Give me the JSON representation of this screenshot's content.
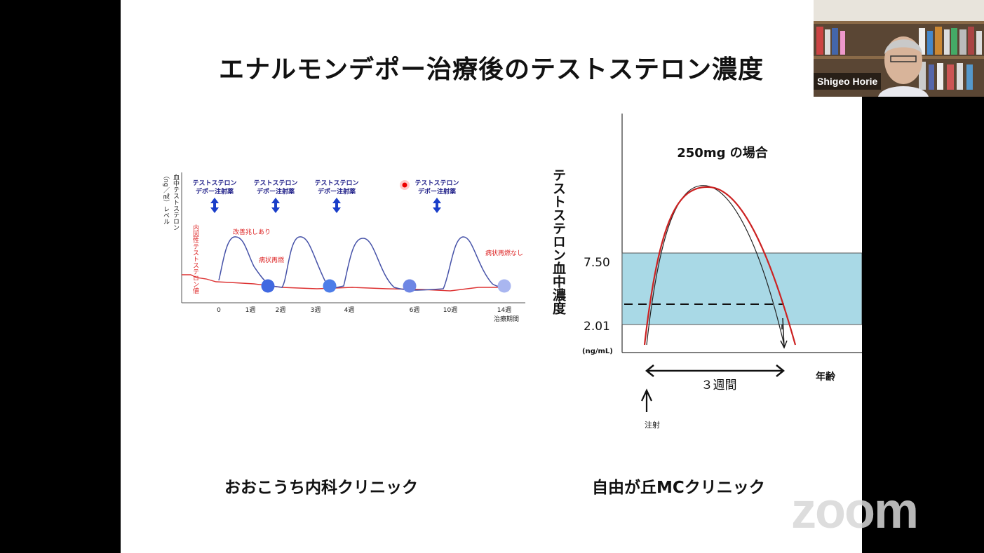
{
  "slide": {
    "title": "エナルモンデポー治療後のテストステロン濃度"
  },
  "left_chart": {
    "ylabel_top": "血中テストステロン",
    "ylabel_unit": "（ng／㎖）レベル",
    "annot_intrinsic": "内因性テストステロン値",
    "annot_improve": "改善兆しあり",
    "annot_relapse": "病状再燃",
    "annot_no_relapse": "病状再燃なし",
    "injection_label_1": "テストステロン",
    "injection_label_2": "デポー注射薬",
    "x_ticks": [
      "0",
      "1週",
      "2週",
      "3週",
      "4週",
      "6週",
      "10週",
      "14週"
    ],
    "x_axis_label": "治療期間"
  },
  "right_chart": {
    "subtitle": "250mg の場合",
    "ylabel": "テストステロン血中濃度",
    "ytick_high": "7.50",
    "ytick_low": "2.01",
    "unit": "(ng/mL)",
    "duration_label": "３週間",
    "x_axis_label": "年齢",
    "injection_label": "注射",
    "band_color": "#add8e6"
  },
  "captions": {
    "left": "おおこうち内科クリニック",
    "right": "自由が丘MCクリニック"
  },
  "video": {
    "participant_name": "Shigeo Horie"
  },
  "watermark": "zoom"
}
